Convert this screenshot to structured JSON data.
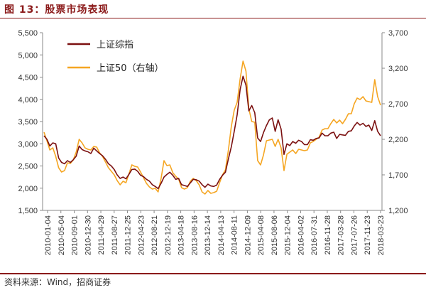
{
  "header": {
    "title": "图 13：股票市场表现"
  },
  "footer": {
    "source": "资料来源：Wind，招商证券"
  },
  "chart_data": {
    "type": "line",
    "title": "图 13：股票市场表现",
    "legend_position": "top-left",
    "grid": false,
    "x_tick_labels": [
      "2010-01-04",
      "2010-05-04",
      "2010-09-01",
      "2010-12-30",
      "2011-04-29",
      "2011-08-27",
      "2011-12-25",
      "2012-04-23",
      "2012-08-21",
      "2012-12-19",
      "2013-04-18",
      "2013-08-16",
      "2013-12-14",
      "2014-04-13",
      "2014-08-11",
      "2014-12-09",
      "2015-04-08",
      "2015-08-06",
      "2015-12-04",
      "2016-04-02",
      "2016-07-31",
      "2016-11-28",
      "2017-03-28",
      "2017-07-26",
      "2017-11-23",
      "2018-03-23"
    ],
    "y_left": {
      "min": 1500,
      "max": 5500,
      "ticks": [
        "1,500",
        "2,000",
        "2,500",
        "3,000",
        "3,500",
        "4,000",
        "4,500",
        "5,000",
        "5,500"
      ]
    },
    "y_right": {
      "min": 1200,
      "max": 3700,
      "ticks": [
        "1,200",
        "1,700",
        "2,200",
        "2,700",
        "3,200",
        "3,700"
      ]
    },
    "series": [
      {
        "name": "上证综指",
        "color": "#7b1010",
        "axis": "left",
        "values": [
          3180,
          3100,
          2950,
          3020,
          3000,
          2680,
          2580,
          2550,
          2620,
          2580,
          2640,
          2720,
          2950,
          2870,
          2840,
          2820,
          2780,
          2900,
          2840,
          2780,
          2730,
          2650,
          2550,
          2500,
          2420,
          2300,
          2220,
          2250,
          2210,
          2310,
          2420,
          2430,
          2380,
          2290,
          2260,
          2200,
          2160,
          2080,
          2040,
          1990,
          2110,
          2250,
          2310,
          2360,
          2290,
          2200,
          2220,
          2080,
          2060,
          2040,
          2120,
          2200,
          2190,
          2160,
          2080,
          2020,
          2090,
          2050,
          2040,
          2070,
          2200,
          2290,
          2360,
          2660,
          2930,
          3280,
          3650,
          4220,
          4520,
          4320,
          3740,
          3860,
          3700,
          3130,
          3050,
          3250,
          3410,
          3540,
          3580,
          3280,
          3540,
          3330,
          2760,
          3000,
          2960,
          3050,
          3010,
          3080,
          3050,
          2980,
          2980,
          3090,
          3080,
          3120,
          3130,
          3240,
          3180,
          3180,
          3240,
          3260,
          3120,
          3210,
          3200,
          3190,
          3280,
          3290,
          3400,
          3480,
          3420,
          3460,
          3390,
          3420,
          3300,
          3520,
          3280,
          3180
        ]
      },
      {
        "name": "上证50（右轴）",
        "color": "#f5a623",
        "axis": "right",
        "values": [
          2300,
          2180,
          2050,
          2080,
          1960,
          1800,
          1740,
          1760,
          1870,
          1860,
          1910,
          2020,
          2200,
          2150,
          2080,
          2060,
          2050,
          2100,
          2090,
          2010,
          1960,
          1880,
          1800,
          1750,
          1700,
          1620,
          1560,
          1610,
          1590,
          1710,
          1840,
          1820,
          1810,
          1740,
          1660,
          1580,
          1530,
          1500,
          1510,
          1460,
          1650,
          1900,
          1830,
          1840,
          1730,
          1680,
          1640,
          1520,
          1500,
          1520,
          1610,
          1650,
          1620,
          1560,
          1460,
          1430,
          1480,
          1440,
          1450,
          1470,
          1590,
          1700,
          1770,
          2050,
          2380,
          2610,
          2720,
          3050,
          3300,
          3160,
          2630,
          2450,
          2440,
          1900,
          1840,
          1980,
          2180,
          2190,
          2200,
          2100,
          2200,
          2080,
          1760,
          1990,
          2020,
          2050,
          2000,
          2060,
          2050,
          2040,
          2050,
          2150,
          2170,
          2200,
          2230,
          2330,
          2350,
          2350,
          2420,
          2480,
          2430,
          2470,
          2420,
          2480,
          2560,
          2560,
          2700,
          2780,
          2760,
          2800,
          2740,
          2730,
          2720,
          3040,
          2800,
          2680
        ]
      }
    ]
  }
}
